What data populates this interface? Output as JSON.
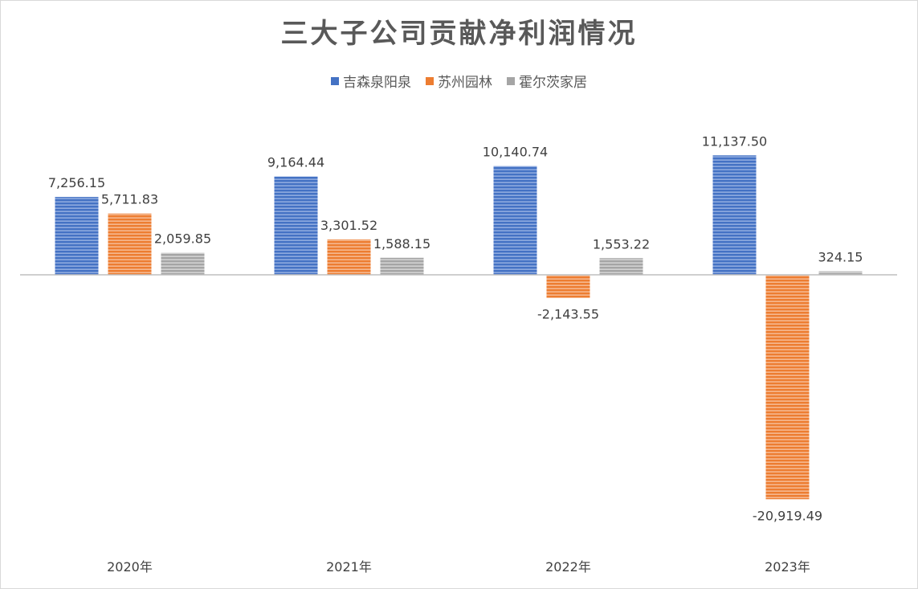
{
  "chart_data": {
    "type": "bar",
    "title": "三大子公司贡献净利润情况",
    "categories": [
      "2020年",
      "2021年",
      "2022年",
      "2023年"
    ],
    "series": [
      {
        "name": "吉森泉阳泉",
        "color": "#4472c4",
        "values": [
          7256.15,
          9164.44,
          10140.74,
          11137.5
        ]
      },
      {
        "name": "苏州园林",
        "color": "#ed7d31",
        "values": [
          5711.83,
          3301.52,
          -2143.55,
          -20919.49
        ]
      },
      {
        "name": "霍尔茨家居",
        "color": "#a5a5a5",
        "values": [
          2059.85,
          1588.15,
          1553.22,
          324.15
        ]
      }
    ],
    "data_labels": [
      [
        "7,256.15",
        "9,164.44",
        "10,140.74",
        "11,137.50"
      ],
      [
        "5,711.83",
        "3,301.52",
        "-2,143.55",
        "-20,919.49"
      ],
      [
        "2,059.85",
        "1,588.15",
        "1,553.22",
        "324.15"
      ]
    ],
    "ylim": [
      -21500,
      12000
    ],
    "legend": "top",
    "grid": false
  }
}
